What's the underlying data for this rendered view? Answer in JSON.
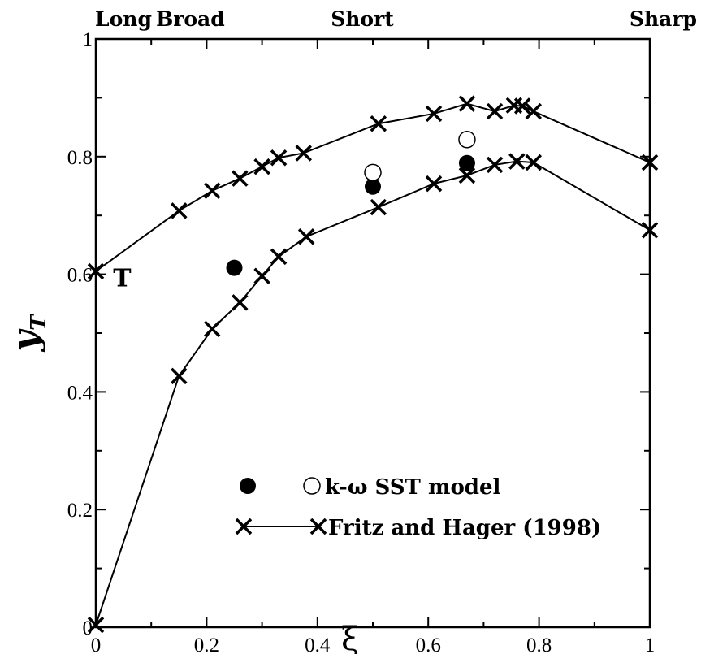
{
  "chart_data": {
    "type": "line",
    "title": "",
    "xlabel": "ξ",
    "ylabel": {
      "main": "y",
      "sub": "T"
    },
    "xlim": [
      0,
      1
    ],
    "ylim": [
      0,
      1
    ],
    "x_ticks": [
      {
        "value": 0,
        "label": "0"
      },
      {
        "value": 0.2,
        "label": "0.2"
      },
      {
        "value": 0.4,
        "label": "0.4"
      },
      {
        "value": 0.6,
        "label": "0.6"
      },
      {
        "value": 0.8,
        "label": "0.8"
      },
      {
        "value": 1,
        "label": "1"
      }
    ],
    "y_ticks": [
      {
        "value": 0,
        "label": "0"
      },
      {
        "value": 0.2,
        "label": "0.2"
      },
      {
        "value": 0.4,
        "label": "0.4"
      },
      {
        "value": 0.6,
        "label": "0.6"
      },
      {
        "value": 0.8,
        "label": "0.8"
      },
      {
        "value": 1,
        "label": "1"
      }
    ],
    "grid": false,
    "top_labels": [
      {
        "x": 0.0,
        "label": "Long"
      },
      {
        "x": 0.2,
        "label": "Broad"
      },
      {
        "x": 0.5,
        "label": "Short"
      },
      {
        "x": 1.0,
        "label": "Sharp"
      }
    ],
    "annotation": {
      "text": "T",
      "x": 0.03,
      "y": 0.61
    },
    "legend": {
      "position": "bottom-right",
      "entries": [
        "k-ω SST model",
        "Fritz and Hager (1998)"
      ]
    },
    "series": [
      {
        "name": "Fritz and Hager (1998)",
        "marker": "x-line",
        "x": [
          0,
          0.15,
          0.21,
          0.26,
          0.3,
          0.33,
          0.375,
          0.51,
          0.61,
          0.67,
          0.72,
          0.755,
          0.77,
          0.79,
          1.0
        ],
        "y": [
          0.605,
          0.708,
          0.742,
          0.763,
          0.783,
          0.798,
          0.806,
          0.856,
          0.873,
          0.89,
          0.877,
          0.887,
          0.886,
          0.877,
          0.79
        ]
      },
      {
        "name": "Fritz and Hager (1998)",
        "marker": "x-line",
        "x": [
          0,
          0.15,
          0.21,
          0.26,
          0.3,
          0.33,
          0.38,
          0.51,
          0.61,
          0.67,
          0.72,
          0.76,
          0.79,
          1.0
        ],
        "y": [
          0.004,
          0.427,
          0.507,
          0.552,
          0.597,
          0.63,
          0.664,
          0.714,
          0.754,
          0.768,
          0.786,
          0.792,
          0.79,
          0.675
        ]
      },
      {
        "name": "k-ω SST model",
        "marker": "filled-circle",
        "x": [
          0.25,
          0.5,
          0.67
        ],
        "y": [
          0.611,
          0.749,
          0.789
        ]
      },
      {
        "name": "k-ω SST model",
        "marker": "open-circle",
        "x": [
          0.5,
          0.67
        ],
        "y": [
          0.773,
          0.829
        ]
      }
    ]
  }
}
